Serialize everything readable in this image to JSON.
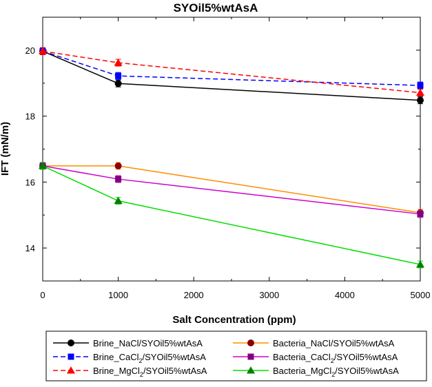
{
  "chart_data": {
    "type": "line",
    "title": "SYOil5%wtAsA",
    "xlabel": "Salt Concentration (ppm)",
    "ylabel": "IFT (mN/m)",
    "xlim": [
      0,
      5000
    ],
    "ylim": [
      13,
      21
    ],
    "xticks": [
      "0",
      "1000",
      "2000",
      "3000",
      "4000",
      "5000"
    ],
    "yticks": [
      "14",
      "16",
      "18",
      "20"
    ],
    "x": [
      0,
      1000,
      5000
    ],
    "legend_placement": "bottom",
    "series": [
      {
        "name": "Brine_NaCl/SYOil5%wtAsA",
        "name_parts": [
          "Brine_NaCl/SYOil5%wtAsA",
          "",
          ""
        ],
        "values": [
          19.97,
          18.99,
          18.48
        ],
        "color": "#000000",
        "marker": "circle",
        "dashed": false
      },
      {
        "name": "Brine_CaCl2/SYOil5%wtAsA",
        "name_parts": [
          "Brine_CaCl",
          "2",
          "/SYOil5%wtAsA"
        ],
        "values": [
          19.97,
          19.22,
          18.93
        ],
        "color": "#0000ff",
        "marker": "square",
        "dashed": true
      },
      {
        "name": "Brine_MgCl2/SYOil5%wtAsA",
        "name_parts": [
          "Brine_MgCl",
          "2",
          "/SYOil5%wtAsA"
        ],
        "values": [
          19.97,
          19.62,
          18.71
        ],
        "color": "#ff0000",
        "marker": "triangle",
        "dashed": true
      },
      {
        "name": "Bacteria_NaCl/SYOil5%wtAsA",
        "name_parts": [
          "Bacteria_NaCl/SYOil5%wtAsA",
          "",
          ""
        ],
        "values": [
          16.49,
          16.49,
          15.07
        ],
        "color": "#ff8c00",
        "marker": "circle",
        "marker_color": "#8b0000",
        "dashed": false
      },
      {
        "name": "Bacteria_CaCl2/SYOil5%wtAsA",
        "name_parts": [
          "Bacteria_CaCl",
          "2",
          "/SYOil5%wtAsA"
        ],
        "values": [
          16.49,
          16.09,
          15.03
        ],
        "color": "#cc00cc",
        "marker": "square",
        "marker_color": "#800080",
        "dashed": false
      },
      {
        "name": "Bacteria_MgCl2/SYOil5%wtAsA",
        "name_parts": [
          "Bacteria_MgCl",
          "2",
          "/SYOil5%wtAsA"
        ],
        "values": [
          16.49,
          15.43,
          13.5
        ],
        "color": "#00dd00",
        "marker": "triangle",
        "marker_color": "#008000",
        "dashed": false
      }
    ]
  }
}
